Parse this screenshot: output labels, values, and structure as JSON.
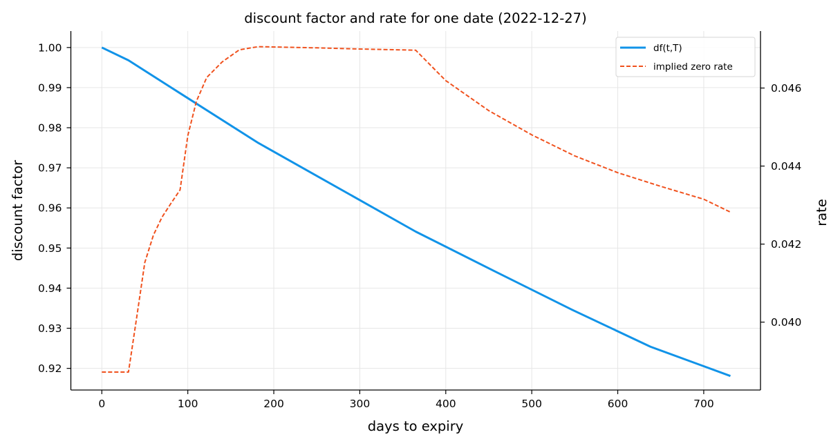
{
  "chart_data": {
    "type": "line",
    "title": "discount factor and rate for one date (2022-12-27)",
    "xlabel": "days to expiry",
    "ylabel_left": "discount factor",
    "ylabel_right": "rate",
    "xlim": [
      -36,
      766
    ],
    "ylim_left": [
      0.9146,
      1.0041
    ],
    "ylim_right": [
      0.03826,
      0.04746
    ],
    "x_ticks": [
      0,
      100,
      200,
      300,
      400,
      500,
      600,
      700
    ],
    "y_ticks_left": [
      0.92,
      0.93,
      0.94,
      0.95,
      0.96,
      0.97,
      0.98,
      0.99,
      1.0
    ],
    "y_tick_labels_left": [
      "0.92",
      "0.93",
      "0.94",
      "0.95",
      "0.96",
      "0.97",
      "0.98",
      "0.99",
      "1.00"
    ],
    "y_ticks_right": [
      0.04,
      0.042,
      0.044,
      0.046
    ],
    "y_tick_labels_right": [
      "0.040",
      "0.042",
      "0.044",
      "0.046"
    ],
    "grid": true,
    "legend_position": "top-right",
    "series": [
      {
        "name": "df(t,T)",
        "axis": "left",
        "color": "#1193e8",
        "style": "solid",
        "x": [
          0,
          31,
          91,
          182,
          365,
          456,
          547,
          638,
          731
        ],
        "y": [
          1.0,
          0.9968,
          0.9886,
          0.9762,
          0.9541,
          0.9443,
          0.9346,
          0.9254,
          0.9181
        ]
      },
      {
        "name": "implied zero rate",
        "axis": "right",
        "color": "#f0511d",
        "style": "dashed",
        "x": [
          0,
          31,
          40,
          50,
          60,
          70,
          80,
          91,
          100,
          110,
          122,
          140,
          160,
          182,
          250,
          300,
          365,
          400,
          450,
          500,
          550,
          600,
          650,
          700,
          731
        ],
        "y": [
          0.03872,
          0.03872,
          0.04004,
          0.04153,
          0.04223,
          0.04269,
          0.04303,
          0.04339,
          0.04478,
          0.04566,
          0.04627,
          0.04667,
          0.04698,
          0.04706,
          0.04703,
          0.047,
          0.04697,
          0.04619,
          0.04542,
          0.0448,
          0.04426,
          0.04383,
          0.04348,
          0.04315,
          0.04282
        ]
      }
    ]
  }
}
